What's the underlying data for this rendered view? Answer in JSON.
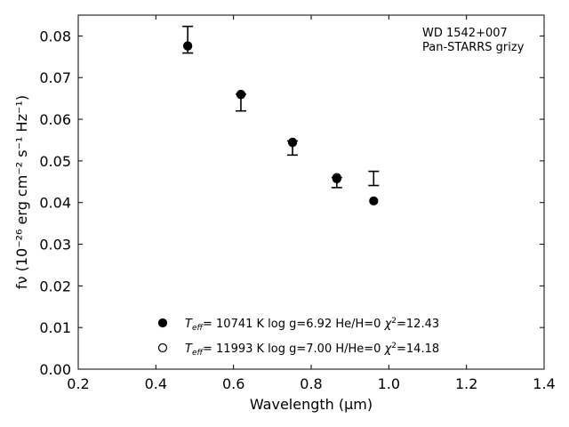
{
  "chart_data": {
    "type": "scatter",
    "xlabel": "Wavelength (μm)",
    "ylabel": "fν (10⁻²⁶ erg cm⁻² s⁻¹ Hz⁻¹)",
    "xlim": [
      0.2,
      1.4
    ],
    "ylim": [
      0.0,
      0.085
    ],
    "xticks": [
      0.2,
      0.4,
      0.6,
      0.8,
      1.0,
      1.2,
      1.4
    ],
    "yticks": [
      0.0,
      0.01,
      0.02,
      0.03,
      0.04,
      0.05,
      0.06,
      0.07,
      0.08
    ],
    "xtick_labels": [
      "0.2",
      "0.4",
      "0.6",
      "0.8",
      "1.0",
      "1.2",
      "1.4"
    ],
    "ytick_labels": [
      "0.00",
      "0.01",
      "0.02",
      "0.03",
      "0.04",
      "0.05",
      "0.06",
      "0.07",
      "0.08"
    ],
    "grid": false,
    "legend_position": "bottom-center",
    "annotation": [
      "WD 1542+007",
      "Pan-STARRS grizy"
    ],
    "observed": {
      "x": [
        0.482,
        0.619,
        0.752,
        0.866,
        0.961
      ],
      "y": [
        0.0791,
        0.064,
        0.0531,
        0.0448,
        0.0458
      ],
      "yerr": [
        0.0032,
        0.002,
        0.0017,
        0.0012,
        0.0017
      ]
    },
    "series": [
      {
        "marker": "filled-circle",
        "label_parts": [
          "T",
          "eff",
          "= 10741 K  log g=6.92  He/H=0  ",
          "χ",
          "2",
          "=12.43"
        ],
        "x": [
          0.482,
          0.619,
          0.752,
          0.866,
          0.961
        ],
        "y": [
          0.0776,
          0.066,
          0.0544,
          0.0457,
          0.0404
        ]
      },
      {
        "marker": "open-circle",
        "label_parts": [
          "T",
          "eff",
          "= 11993 K  log g=7.00  H/He=0  ",
          "χ",
          "2",
          "=14.18"
        ],
        "x": [
          0.482,
          0.619,
          0.752,
          0.866
        ],
        "y": [
          0.0776,
          0.0659,
          0.0545,
          0.046
        ]
      }
    ],
    "colors": {
      "marker": "#000000",
      "axis": "#000000",
      "background": "#ffffff"
    }
  }
}
